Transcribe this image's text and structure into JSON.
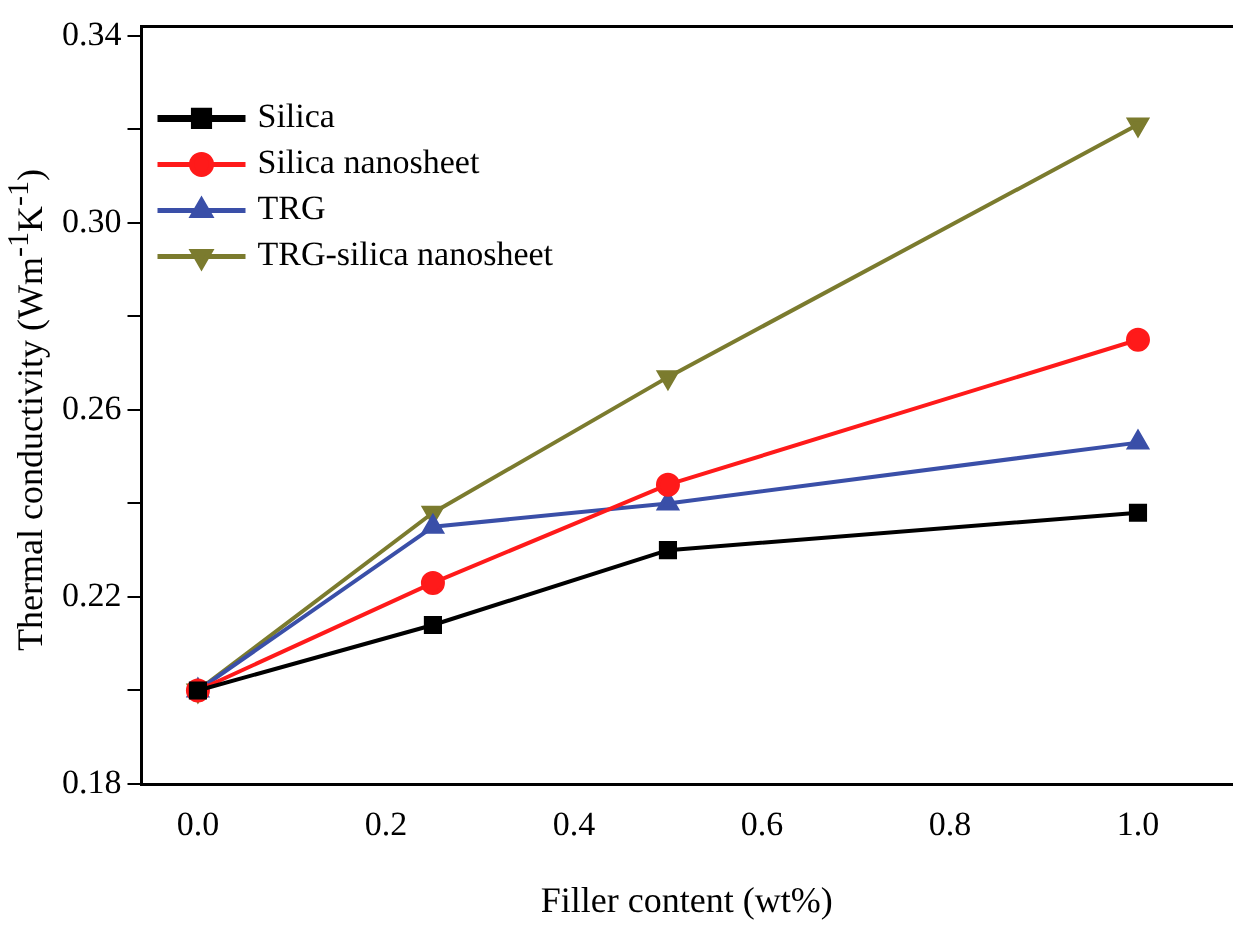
{
  "chart_data": {
    "type": "line",
    "xlabel": "Filler content (wt%)",
    "ylabel": "Thermal conductivity (Wm$^{-1}$K$^{-1}$)",
    "x": [
      0,
      0.25,
      0.5,
      1.0
    ],
    "xlim": [
      -0.06,
      1.1
    ],
    "xticks": [
      {
        "value": 0,
        "label": "0.0"
      },
      0.2,
      0.4,
      0.6,
      0.8,
      {
        "value": 1,
        "label": "1.0"
      }
    ],
    "ylim": [
      0.18,
      0.342
    ],
    "yticks": [
      0.18,
      {
        "value": 0.2,
        "label": null
      },
      0.22,
      {
        "value": 0.24,
        "label": null
      },
      0.26,
      {
        "value": 0.28,
        "label": null
      },
      {
        "value": 0.3,
        "label": "0.30"
      },
      {
        "value": 0.32,
        "label": null
      },
      0.34
    ],
    "legend": "top left",
    "grid": false,
    "line_style": "solid",
    "series": [
      {
        "name": "Silica",
        "color": "#000000",
        "marker": "square",
        "values": [
          0.2,
          0.214,
          0.23,
          0.238
        ]
      },
      {
        "name": "Silica nanosheet",
        "color": "#ff1a1a",
        "marker": "circle",
        "values": [
          0.2,
          0.223,
          0.244,
          0.275
        ]
      },
      {
        "name": "TRG",
        "color": "#3a4fa8",
        "marker": "triangle",
        "values": [
          0.2,
          0.235,
          0.24,
          0.253
        ]
      },
      {
        "name": "TRG-silica nanosheet",
        "color": "#7b7b2e",
        "marker": "triangle_down",
        "values": [
          0.2,
          0.238,
          0.267,
          0.321
        ]
      }
    ]
  }
}
